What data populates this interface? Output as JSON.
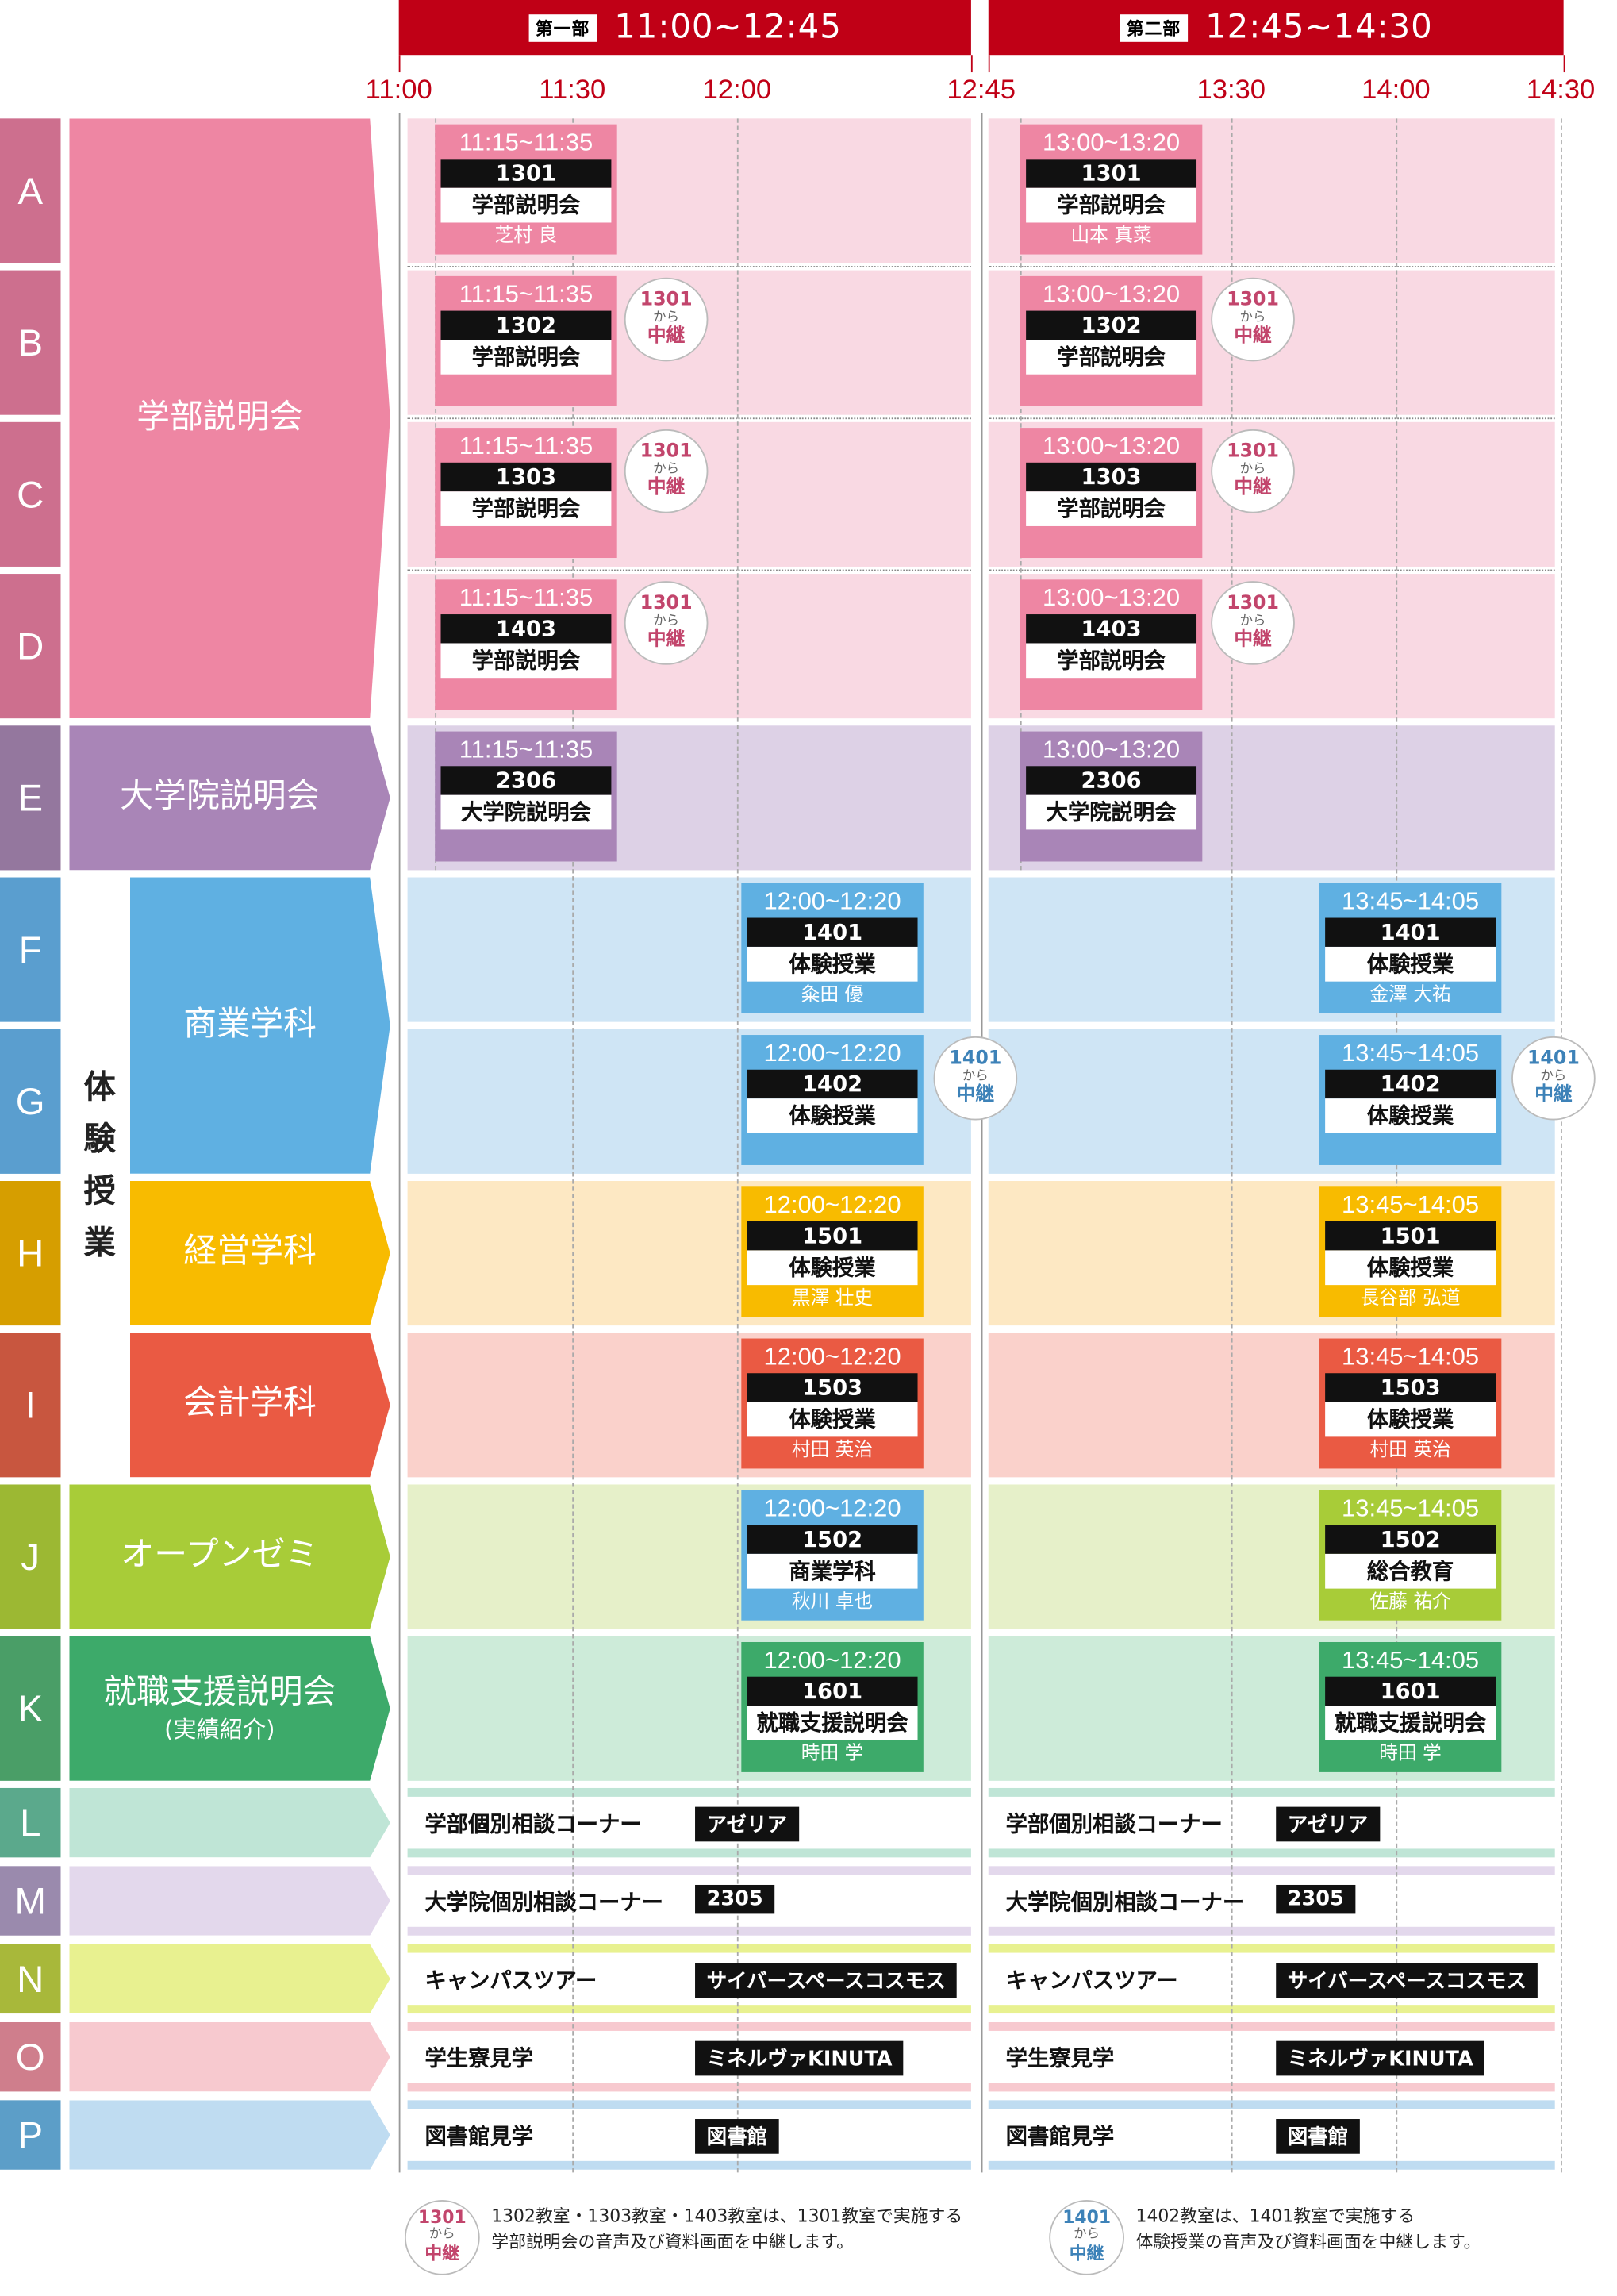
{
  "phases": [
    {
      "tag": "第一部",
      "range": "11:00~12:45"
    },
    {
      "tag": "第二部",
      "range": "12:45~14:30"
    }
  ],
  "time_labels": [
    "11:00",
    "11:30",
    "12:00",
    "12:45",
    "13:30",
    "14:00",
    "14:30"
  ],
  "rows": [
    {
      "id": "A",
      "color": "#cd6f8e",
      "fill": "#f9d9e3"
    },
    {
      "id": "B",
      "color": "#cd6f8e",
      "fill": "#f9d9e3"
    },
    {
      "id": "C",
      "color": "#cd6f8e",
      "fill": "#f9d9e3"
    },
    {
      "id": "D",
      "color": "#cd6f8e",
      "fill": "#f9d9e3"
    },
    {
      "id": "E",
      "color": "#94779e",
      "fill": "#ddd1e6"
    },
    {
      "id": "F",
      "color": "#5a9ecf",
      "fill": "#cfe5f5"
    },
    {
      "id": "G",
      "color": "#5a9ecf",
      "fill": "#cfe5f5"
    },
    {
      "id": "H",
      "color": "#d69e00",
      "fill": "#fde8c3"
    },
    {
      "id": "I",
      "color": "#c8563f",
      "fill": "#fad1cb"
    },
    {
      "id": "J",
      "color": "#9cb833",
      "fill": "#e6f0c9"
    },
    {
      "id": "K",
      "color": "#4a9e67",
      "fill": "#cdebd9"
    },
    {
      "id": "L",
      "color": "#5ba98c",
      "fill": "#bfe5d6"
    },
    {
      "id": "M",
      "color": "#9a8aad",
      "fill": "#e3d8ec"
    },
    {
      "id": "N",
      "color": "#a8b83a",
      "fill": "#e8f190"
    },
    {
      "id": "O",
      "color": "#cf7e8c",
      "fill": "#f7c9cf"
    },
    {
      "id": "P",
      "color": "#5c9ec8",
      "fill": "#bfdcf1"
    }
  ],
  "categories": [
    {
      "label": "学部説明会",
      "sub": "",
      "color": "#ee86a3"
    },
    {
      "label": "大学院説明会",
      "sub": "",
      "color": "#a985b7"
    },
    {
      "label": "体験授業",
      "sub": "",
      "color": "#222"
    },
    {
      "label": "商業学科",
      "sub": "",
      "color": "#5fb0e2"
    },
    {
      "label": "経営学科",
      "sub": "",
      "color": "#f8bb00"
    },
    {
      "label": "会計学科",
      "sub": "",
      "color": "#ea5a43"
    },
    {
      "label": "オープンゼミ",
      "sub": "",
      "color": "#a8cc38"
    },
    {
      "label": "就職支援説明会",
      "sub": "(実績紹介)",
      "color": "#3daa6a"
    }
  ],
  "sessions": [
    {
      "time": "11:15~11:35",
      "room": "1301",
      "event": "学部説明会",
      "lecturer": "芝村 良",
      "color": "#ee86a3"
    },
    {
      "time": "13:00~13:20",
      "room": "1301",
      "event": "学部説明会",
      "lecturer": "山本 真菜",
      "color": "#ee86a3"
    },
    {
      "time": "11:15~11:35",
      "room": "1302",
      "event": "学部説明会",
      "lecturer": "",
      "color": "#ee86a3"
    },
    {
      "time": "13:00~13:20",
      "room": "1302",
      "event": "学部説明会",
      "lecturer": "",
      "color": "#ee86a3"
    },
    {
      "time": "11:15~11:35",
      "room": "1303",
      "event": "学部説明会",
      "lecturer": "",
      "color": "#ee86a3"
    },
    {
      "time": "13:00~13:20",
      "room": "1303",
      "event": "学部説明会",
      "lecturer": "",
      "color": "#ee86a3"
    },
    {
      "time": "11:15~11:35",
      "room": "1403",
      "event": "学部説明会",
      "lecturer": "",
      "color": "#ee86a3"
    },
    {
      "time": "13:00~13:20",
      "room": "1403",
      "event": "学部説明会",
      "lecturer": "",
      "color": "#ee86a3"
    },
    {
      "time": "11:15~11:35",
      "room": "2306",
      "event": "大学院説明会",
      "lecturer": "",
      "color": "#a985b7"
    },
    {
      "time": "13:00~13:20",
      "room": "2306",
      "event": "大学院説明会",
      "lecturer": "",
      "color": "#a985b7"
    },
    {
      "time": "12:00~12:20",
      "room": "1401",
      "event": "体験授業",
      "lecturer": "粂田 優",
      "color": "#5fb0e2"
    },
    {
      "time": "13:45~14:05",
      "room": "1401",
      "event": "体験授業",
      "lecturer": "金澤 大祐",
      "color": "#5fb0e2"
    },
    {
      "time": "12:00~12:20",
      "room": "1402",
      "event": "体験授業",
      "lecturer": "",
      "color": "#5fb0e2"
    },
    {
      "time": "13:45~14:05",
      "room": "1402",
      "event": "体験授業",
      "lecturer": "",
      "color": "#5fb0e2"
    },
    {
      "time": "12:00~12:20",
      "room": "1501",
      "event": "体験授業",
      "lecturer": "黒澤 壮史",
      "color": "#f8bb00"
    },
    {
      "time": "13:45~14:05",
      "room": "1501",
      "event": "体験授業",
      "lecturer": "長谷部 弘道",
      "color": "#f8bb00"
    },
    {
      "time": "12:00~12:20",
      "room": "1503",
      "event": "体験授業",
      "lecturer": "村田 英治",
      "color": "#ea5a43"
    },
    {
      "time": "13:45~14:05",
      "room": "1503",
      "event": "体験授業",
      "lecturer": "村田 英治",
      "color": "#ea5a43"
    },
    {
      "time": "12:00~12:20",
      "room": "1502",
      "event": "商業学科",
      "lecturer": "秋川 卓也",
      "color": "#5fb0e2"
    },
    {
      "time": "13:45~14:05",
      "room": "1502",
      "event": "総合教育",
      "lecturer": "佐藤 祐介",
      "color": "#a8cc38"
    },
    {
      "time": "12:00~12:20",
      "room": "1601",
      "event": "就職支援説明会",
      "lecturer": "時田 学",
      "color": "#3daa6a"
    },
    {
      "time": "13:45~14:05",
      "room": "1601",
      "event": "就職支援説明会",
      "lecturer": "時田 学",
      "color": "#3daa6a"
    }
  ],
  "relays": [
    {
      "room": "1301",
      "from": "から",
      "label": "中継",
      "color": "#c2456c"
    },
    {
      "room": "1301",
      "from": "から",
      "label": "中継",
      "color": "#c2456c"
    },
    {
      "room": "1301",
      "from": "から",
      "label": "中継",
      "color": "#c2456c"
    },
    {
      "room": "1301",
      "from": "から",
      "label": "中継",
      "color": "#c2456c"
    },
    {
      "room": "1301",
      "from": "から",
      "label": "中継",
      "color": "#c2456c"
    },
    {
      "room": "1301",
      "from": "から",
      "label": "中継",
      "color": "#c2456c"
    },
    {
      "room": "1401",
      "from": "から",
      "label": "中継",
      "color": "#3d82b8"
    },
    {
      "room": "1401",
      "from": "から",
      "label": "中継",
      "color": "#3d82b8"
    }
  ],
  "corners": [
    {
      "name": "学部個別相談コーナー",
      "room": "アゼリア"
    },
    {
      "name": "学部個別相談コーナー",
      "room": "アゼリア"
    },
    {
      "name": "大学院個別相談コーナー",
      "room": "2305"
    },
    {
      "name": "大学院個別相談コーナー",
      "room": "2305"
    },
    {
      "name": "キャンパスツアー",
      "room": "サイバースペースコスモス"
    },
    {
      "name": "キャンパスツアー",
      "room": "サイバースペースコスモス"
    },
    {
      "name": "学生寮見学",
      "room": "ミネルヴァKINUTA"
    },
    {
      "name": "学生寮見学",
      "room": "ミネルヴァKINUTA"
    },
    {
      "name": "図書館見学",
      "room": "図書館"
    },
    {
      "name": "図書館見学",
      "room": "図書館"
    }
  ],
  "footnotes": [
    {
      "badge_room": "1301",
      "badge_from": "から",
      "badge_label": "中継",
      "line1": "1302教室・1303教室・1403教室は、1301教室で実施する",
      "line2": "学部説明会の音声及び資料画面を中継します。",
      "color": "#c2456c"
    },
    {
      "badge_room": "1401",
      "badge_from": "から",
      "badge_label": "中継",
      "line1": "1402教室は、1401教室で実施する",
      "line2": "体験授業の音声及び資料画面を中継します。",
      "color": "#3d82b8"
    }
  ]
}
